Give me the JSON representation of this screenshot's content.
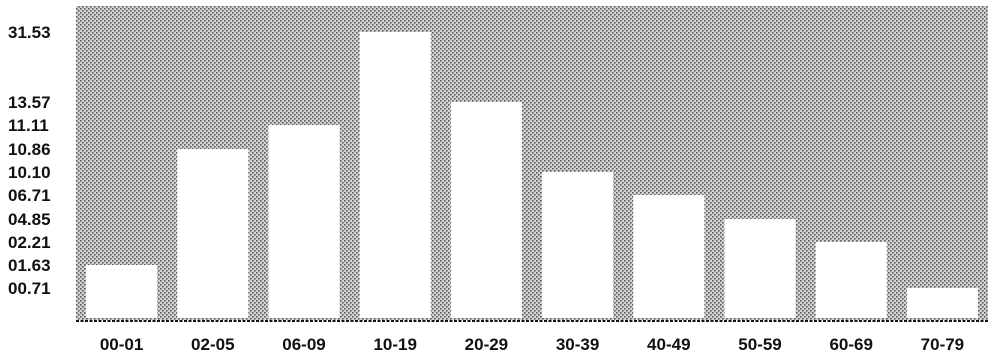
{
  "chart_data": {
    "type": "bar",
    "categories": [
      "00-01",
      "02-05",
      "06-09",
      "10-19",
      "20-29",
      "30-39",
      "40-49",
      "50-59",
      "60-69",
      "70-79"
    ],
    "values": [
      1.63,
      10.86,
      11.11,
      31.53,
      13.57,
      10.1,
      6.71,
      4.85,
      2.21,
      0.71
    ],
    "y_tick_labels": [
      "31.53",
      "13.57",
      "11.11",
      "10.86",
      "10.10",
      "06.71",
      "04.85",
      "02.21",
      "01.63",
      "00.71"
    ],
    "title": "",
    "xlabel": "",
    "ylabel": "",
    "grid": false,
    "legend": "none",
    "colors": {
      "bar": "#ffffff",
      "plot_background": "#b8b8b8",
      "text": "#111111"
    }
  }
}
